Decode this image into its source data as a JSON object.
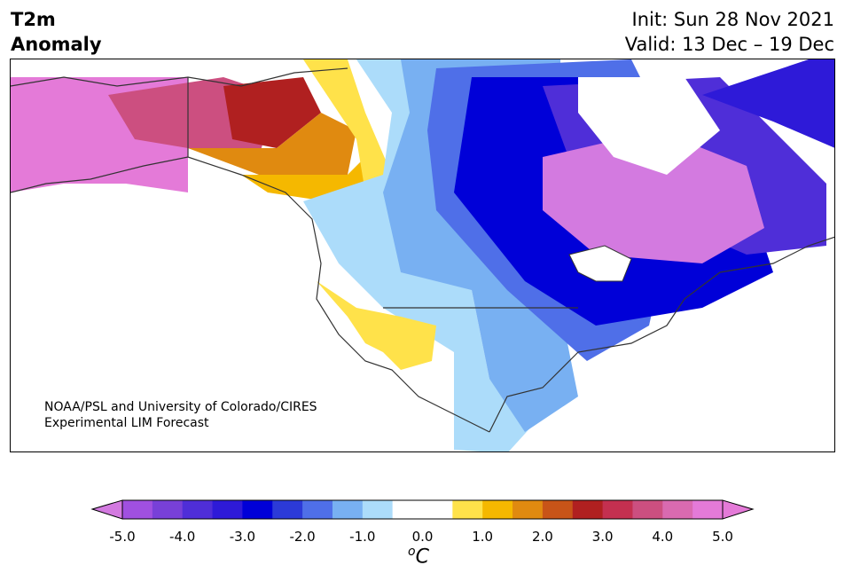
{
  "title": {
    "line1": "T2m",
    "line2": "Anomaly"
  },
  "header_right": {
    "init": "Init: Sun 28 Nov 2021",
    "valid": "Valid: 13 Dec – 19 Dec"
  },
  "credit": {
    "line1": "NOAA/PSL and University of Colorado/CIRES",
    "line2": "Experimental LIM Forecast"
  },
  "colorbar": {
    "unit_base": "C",
    "unit_sup": "o",
    "ticks": [
      "-5.0",
      "-4.0",
      "-3.0",
      "-2.0",
      "-1.0",
      "0.0",
      "1.0",
      "2.0",
      "3.0",
      "4.0",
      "5.0"
    ],
    "colors": [
      "#a050e0",
      "#7840d8",
      "#4f2ed8",
      "#2e1ad8",
      "#0000d8",
      "#2c3ad8",
      "#4f6fe8",
      "#78b0f2",
      "#acdcfa",
      "#ffffff",
      "#ffffff",
      "#ffe24a",
      "#f5b800",
      "#e08a10",
      "#c85418",
      "#b02020",
      "#c43050",
      "#cc4f80",
      "#d96ab0",
      "#e47ad8"
    ],
    "under_color": "#d37ae0",
    "over_color": "#e47ad8"
  },
  "legend_colors": {
    "cold_extreme": "#0000d8",
    "warm_extreme": "#b02020"
  }
}
